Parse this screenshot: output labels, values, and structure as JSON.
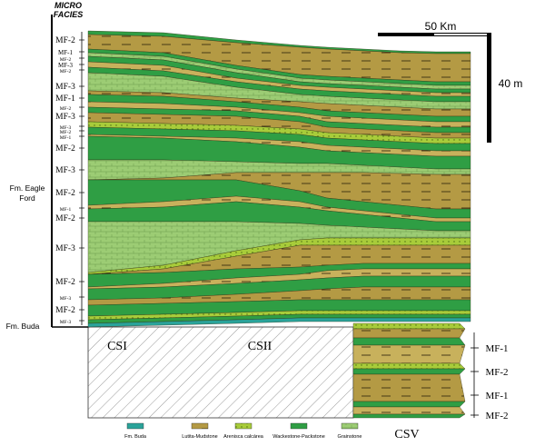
{
  "header": {
    "line1": "MICRO",
    "line2": "FACIES"
  },
  "formations": {
    "eagle_ford_line1": "Fm. Eagle",
    "eagle_ford_line2": "Ford",
    "buda": "Fm. Buda"
  },
  "left_column": [
    {
      "label": "MF-2",
      "size": "big"
    },
    {
      "label": "MF-1",
      "size": "small"
    },
    {
      "label": "MF-2",
      "size": "tiny"
    },
    {
      "label": "MF-3",
      "size": "small"
    },
    {
      "label": "MF-2",
      "size": "tiny"
    },
    {
      "label": "MF-3",
      "size": "big"
    },
    {
      "label": "MF-1",
      "size": "big"
    },
    {
      "label": "MF-2",
      "size": "tiny"
    },
    {
      "label": "MF-3",
      "size": "big"
    },
    {
      "label": "MF-3",
      "size": "tiny"
    },
    {
      "label": "MF-2",
      "size": "tiny"
    },
    {
      "label": "MF-1",
      "size": "tiny"
    },
    {
      "label": "MF-2",
      "size": "big"
    },
    {
      "label": "MF-3",
      "size": "big"
    },
    {
      "label": "MF-2",
      "size": "big"
    },
    {
      "label": "MF-1",
      "size": "tiny"
    },
    {
      "label": "MF-2",
      "size": "big"
    },
    {
      "label": "MF-3",
      "size": "big"
    },
    {
      "label": "MF-2",
      "size": "big"
    },
    {
      "label": "MF-3",
      "size": "tiny"
    },
    {
      "label": "MF-2",
      "size": "big"
    },
    {
      "label": "MF-3",
      "size": "tiny"
    }
  ],
  "right_column": [
    "MF-1",
    "MF-2",
    "MF-1",
    "MF-2"
  ],
  "scale": {
    "horizontal": "50 Km",
    "vertical": "40 m"
  },
  "sections": {
    "csi": "CSI",
    "csii": "CSII",
    "csv": "CSV"
  },
  "legend": [
    {
      "label": "Fm. Buda",
      "color": "#2aa39a"
    },
    {
      "label": "Lutita-Mudstone",
      "color": "#b49a44"
    },
    {
      "label": "Arenisca calcárea",
      "color": "#a8cc3a"
    },
    {
      "label": "Wackestone-Packstone",
      "color": "#2f9e44"
    },
    {
      "label": "Grainstone",
      "color": "#9ccc74"
    }
  ],
  "colors": {
    "mudstone": "#b49a44",
    "mudstone_light": "#c8b15c",
    "wackestone": "#2f9e44",
    "grainstone": "#9ccc74",
    "arenisca": "#a8cc3a",
    "buda": "#2aa39a"
  }
}
